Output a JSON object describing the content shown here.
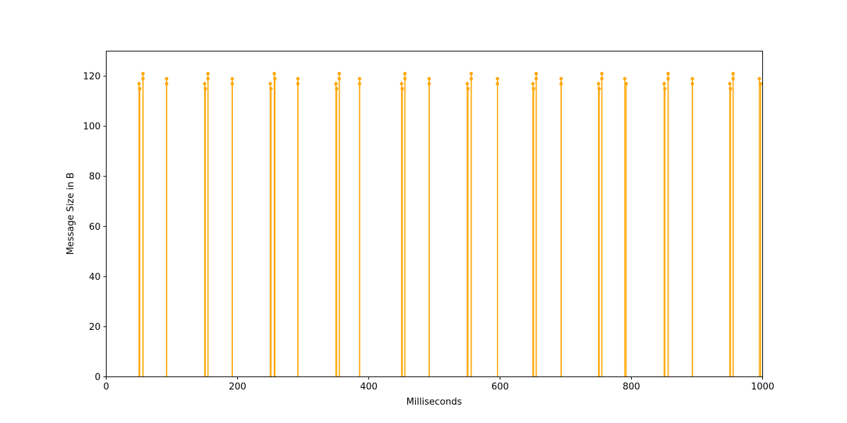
{
  "chart_data": {
    "type": "stem",
    "title": "",
    "xlabel": "Milliseconds",
    "ylabel": "Message Size in B",
    "xlim": [
      0,
      1000
    ],
    "ylim": [
      0,
      130
    ],
    "xticks": [
      0,
      200,
      400,
      600,
      800,
      1000
    ],
    "yticks": [
      0,
      20,
      40,
      60,
      80,
      100,
      120
    ],
    "grid": false,
    "legend": "none",
    "color": "#ffa500",
    "series": [
      {
        "points": [
          {
            "x": 50,
            "y": 117
          },
          {
            "x": 51,
            "y": 115
          },
          {
            "x": 56,
            "y": 121
          },
          {
            "x": 56,
            "y": 119
          },
          {
            "x": 92,
            "y": 119
          },
          {
            "x": 92,
            "y": 117
          },
          {
            "x": 150,
            "y": 117
          },
          {
            "x": 151,
            "y": 115
          },
          {
            "x": 155,
            "y": 121
          },
          {
            "x": 155,
            "y": 119
          },
          {
            "x": 192,
            "y": 119
          },
          {
            "x": 192,
            "y": 117
          },
          {
            "x": 250,
            "y": 117
          },
          {
            "x": 251,
            "y": 115
          },
          {
            "x": 256,
            "y": 121
          },
          {
            "x": 257,
            "y": 119
          },
          {
            "x": 292,
            "y": 119
          },
          {
            "x": 292,
            "y": 117
          },
          {
            "x": 350,
            "y": 117
          },
          {
            "x": 351,
            "y": 115
          },
          {
            "x": 355,
            "y": 121
          },
          {
            "x": 355,
            "y": 119
          },
          {
            "x": 386,
            "y": 119
          },
          {
            "x": 386,
            "y": 117
          },
          {
            "x": 450,
            "y": 117
          },
          {
            "x": 451,
            "y": 115
          },
          {
            "x": 455,
            "y": 121
          },
          {
            "x": 455,
            "y": 119
          },
          {
            "x": 492,
            "y": 119
          },
          {
            "x": 492,
            "y": 117
          },
          {
            "x": 550,
            "y": 117
          },
          {
            "x": 551,
            "y": 115
          },
          {
            "x": 556,
            "y": 121
          },
          {
            "x": 556,
            "y": 119
          },
          {
            "x": 596,
            "y": 119
          },
          {
            "x": 596,
            "y": 117
          },
          {
            "x": 650,
            "y": 117
          },
          {
            "x": 651,
            "y": 115
          },
          {
            "x": 655,
            "y": 121
          },
          {
            "x": 655,
            "y": 119
          },
          {
            "x": 693,
            "y": 119
          },
          {
            "x": 693,
            "y": 117
          },
          {
            "x": 750,
            "y": 117
          },
          {
            "x": 751,
            "y": 115
          },
          {
            "x": 755,
            "y": 121
          },
          {
            "x": 755,
            "y": 119
          },
          {
            "x": 790,
            "y": 119
          },
          {
            "x": 792,
            "y": 117
          },
          {
            "x": 850,
            "y": 117
          },
          {
            "x": 851,
            "y": 115
          },
          {
            "x": 856,
            "y": 121
          },
          {
            "x": 856,
            "y": 119
          },
          {
            "x": 893,
            "y": 119
          },
          {
            "x": 893,
            "y": 117
          },
          {
            "x": 950,
            "y": 117
          },
          {
            "x": 951,
            "y": 115
          },
          {
            "x": 955,
            "y": 121
          },
          {
            "x": 955,
            "y": 119
          },
          {
            "x": 995,
            "y": 119
          },
          {
            "x": 997,
            "y": 117
          }
        ]
      }
    ]
  }
}
